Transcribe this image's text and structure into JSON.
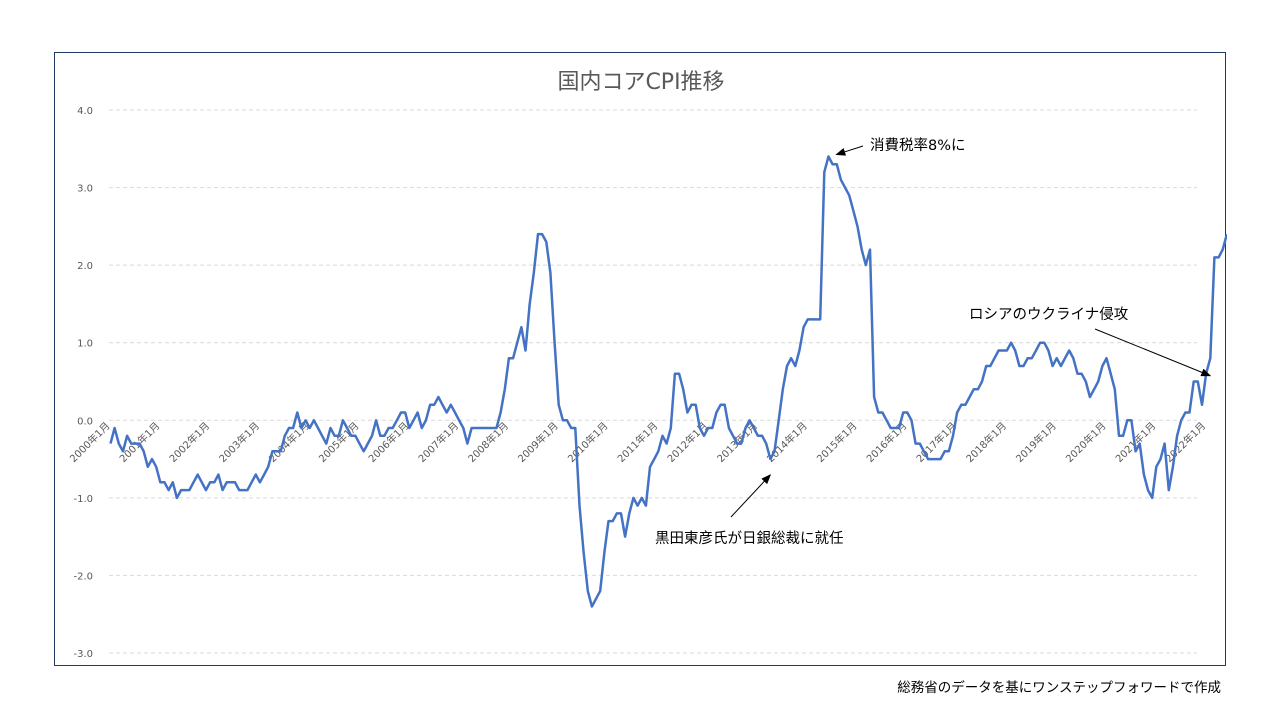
{
  "chart_data": {
    "type": "line",
    "title": "国内コアCPI推移",
    "xlabel": "",
    "ylabel": "",
    "ylim": [
      -3.0,
      4.0
    ],
    "yticks": [
      "4.0",
      "3.0",
      "2.0",
      "1.0",
      "0.0",
      "-1.0",
      "-2.0",
      "-3.0"
    ],
    "xticks": [
      "2000年1月",
      "2001年1月",
      "2002年1月",
      "2003年1月",
      "2004年1月",
      "2005年1月",
      "2006年1月",
      "2007年1月",
      "2008年1月",
      "2009年1月",
      "2010年1月",
      "2011年1月",
      "2012年1月",
      "2013年1月",
      "2014年1月",
      "2015年1月",
      "2016年1月",
      "2017年1月",
      "2018年1月",
      "2019年1月",
      "2020年1月",
      "2021年1月",
      "2022年1月"
    ],
    "x_start": "2000-01",
    "frequency": "monthly",
    "grid": true,
    "line_color": "#4472c4",
    "values": [
      -0.3,
      -0.1,
      -0.3,
      -0.4,
      -0.2,
      -0.3,
      -0.3,
      -0.3,
      -0.4,
      -0.6,
      -0.5,
      -0.6,
      -0.8,
      -0.8,
      -0.9,
      -0.8,
      -1.0,
      -0.9,
      -0.9,
      -0.9,
      -0.8,
      -0.7,
      -0.8,
      -0.9,
      -0.8,
      -0.8,
      -0.7,
      -0.9,
      -0.8,
      -0.8,
      -0.8,
      -0.9,
      -0.9,
      -0.9,
      -0.8,
      -0.7,
      -0.8,
      -0.7,
      -0.6,
      -0.4,
      -0.4,
      -0.4,
      -0.2,
      -0.1,
      -0.1,
      0.1,
      -0.1,
      0.0,
      -0.1,
      0.0,
      -0.1,
      -0.2,
      -0.3,
      -0.1,
      -0.2,
      -0.2,
      0.0,
      -0.1,
      -0.2,
      -0.2,
      -0.3,
      -0.4,
      -0.3,
      -0.2,
      0.0,
      -0.2,
      -0.2,
      -0.1,
      -0.1,
      0.0,
      0.1,
      0.1,
      -0.1,
      0.0,
      0.1,
      -0.1,
      0.0,
      0.2,
      0.2,
      0.3,
      0.2,
      0.1,
      0.2,
      0.1,
      0.0,
      -0.1,
      -0.3,
      -0.1,
      -0.1,
      -0.1,
      -0.1,
      -0.1,
      -0.1,
      -0.1,
      0.1,
      0.4,
      0.8,
      0.8,
      1.0,
      1.2,
      0.9,
      1.5,
      1.9,
      2.4,
      2.4,
      2.3,
      1.9,
      1.0,
      0.2,
      0.0,
      0.0,
      -0.1,
      -0.1,
      -1.1,
      -1.7,
      -2.2,
      -2.4,
      -2.3,
      -2.2,
      -1.7,
      -1.3,
      -1.3,
      -1.2,
      -1.2,
      -1.5,
      -1.2,
      -1.0,
      -1.1,
      -1.0,
      -1.1,
      -0.6,
      -0.5,
      -0.4,
      -0.2,
      -0.3,
      -0.1,
      0.6,
      0.6,
      0.4,
      0.1,
      0.2,
      0.2,
      -0.1,
      -0.2,
      -0.1,
      -0.1,
      0.1,
      0.2,
      0.2,
      -0.1,
      -0.2,
      -0.3,
      -0.3,
      -0.1,
      0.0,
      -0.1,
      -0.2,
      -0.2,
      -0.3,
      -0.5,
      -0.4,
      0.0,
      0.4,
      0.7,
      0.8,
      0.7,
      0.9,
      1.2,
      1.3,
      1.3,
      1.3,
      1.3,
      3.2,
      3.4,
      3.3,
      3.3,
      3.1,
      3.0,
      2.9,
      2.7,
      2.5,
      2.2,
      2.0,
      2.2,
      0.3,
      0.1,
      0.1,
      0.0,
      -0.1,
      -0.1,
      -0.1,
      0.1,
      0.1,
      0.0,
      -0.3,
      -0.3,
      -0.4,
      -0.5,
      -0.5,
      -0.5,
      -0.5,
      -0.4,
      -0.4,
      -0.2,
      0.1,
      0.2,
      0.2,
      0.3,
      0.4,
      0.4,
      0.5,
      0.7,
      0.7,
      0.8,
      0.9,
      0.9,
      0.9,
      1.0,
      0.9,
      0.7,
      0.7,
      0.8,
      0.8,
      0.9,
      1.0,
      1.0,
      0.9,
      0.7,
      0.8,
      0.7,
      0.8,
      0.9,
      0.8,
      0.6,
      0.6,
      0.5,
      0.3,
      0.4,
      0.5,
      0.7,
      0.8,
      0.6,
      0.4,
      -0.2,
      -0.2,
      0.0,
      0.0,
      -0.4,
      -0.3,
      -0.7,
      -0.9,
      -1.0,
      -0.6,
      -0.5,
      -0.3,
      -0.9,
      -0.6,
      -0.2,
      0.0,
      0.1,
      0.1,
      0.5,
      0.5,
      0.2,
      0.6,
      0.8,
      2.1,
      2.1,
      2.2,
      2.4
    ],
    "annotations": [
      {
        "text": "消費税率8%に",
        "x": "2014-05",
        "y": 3.4
      },
      {
        "text": "黒田東彦氏が日銀総裁に就任",
        "x": "2013-04",
        "y": -0.6
      },
      {
        "text": "ロシアのウクライナ侵攻",
        "x": "2022-02",
        "y": 0.6
      }
    ]
  },
  "source_note": "総務省のデータを基にワンステップフォワードで作成"
}
